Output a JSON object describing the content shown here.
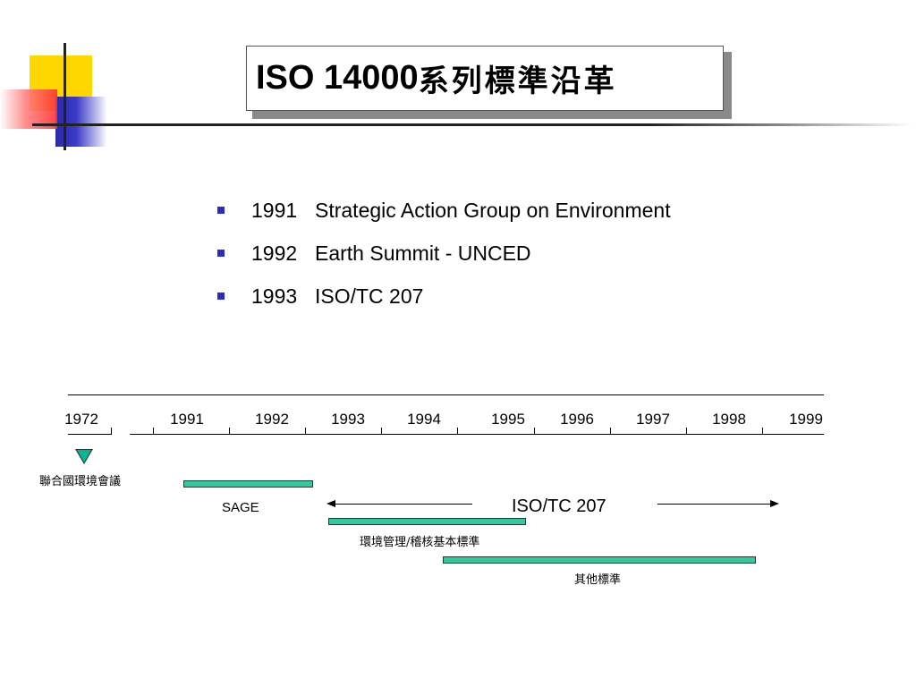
{
  "title": {
    "latin": "ISO 14000",
    "cn": "系列標準沿革"
  },
  "bullets": [
    {
      "year": "1991",
      "text": "Strategic Action Group on Environment"
    },
    {
      "year": "1992",
      "text": "Earth Summit - UNCED"
    },
    {
      "year": "1993",
      "text": "ISO/TC 207"
    }
  ],
  "timeline": {
    "years": [
      "1972",
      "1991",
      "1992",
      "1993",
      "1994",
      "1995",
      "1996",
      "1997",
      "1998",
      "1999"
    ],
    "events": {
      "un_conference": "聯合國環境會議",
      "sage": "SAGE",
      "iso_tc": "ISO/TC 207",
      "ems_audit": "環境管理/稽核基本標準",
      "other": "其他標準"
    }
  },
  "colors": {
    "bar": "#33c9a0",
    "bullet": "#2b2bc0",
    "marker": "#00b894"
  }
}
